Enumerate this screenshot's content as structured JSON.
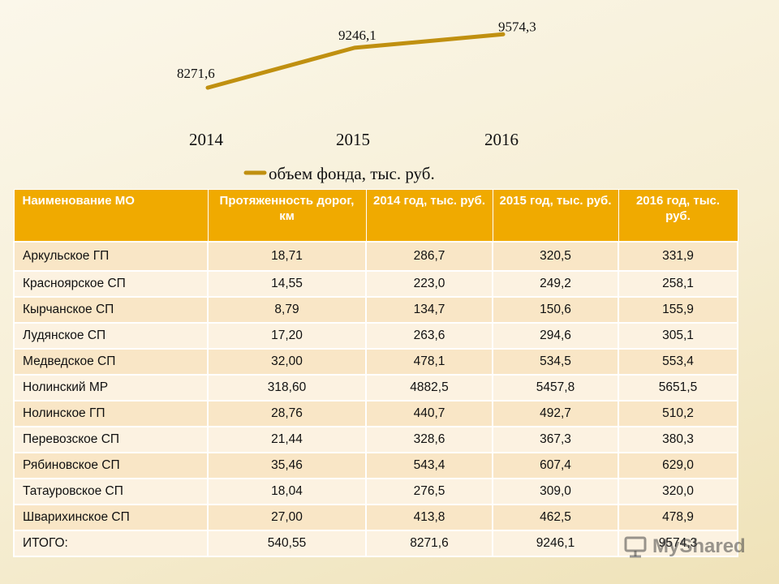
{
  "chart_data": {
    "type": "line",
    "categories": [
      "2014",
      "2015",
      "2016"
    ],
    "series": [
      {
        "name": "объем фонда, тыс. руб.",
        "values": [
          8271.6,
          9246.1,
          9574.3
        ],
        "labels": [
          "8271,6",
          "9246,1",
          "9574,3"
        ],
        "color": "#c09010"
      }
    ],
    "title": "",
    "xlabel": "",
    "ylabel": "",
    "ylim": [
      7700,
      9700
    ],
    "legend": "bottom-center",
    "grid": false
  },
  "table": {
    "headers": [
      "Наименование МО",
      "Протяженность дорог, км",
      "2014 год, тыс. руб.",
      "2015 год, тыс. руб.",
      "2016 год, тыс. руб."
    ],
    "rows": [
      [
        "Аркульское ГП",
        "18,71",
        "286,7",
        "320,5",
        "331,9"
      ],
      [
        "Красноярское СП",
        "14,55",
        "223,0",
        "249,2",
        "258,1"
      ],
      [
        "Кырчанское СП",
        "8,79",
        "134,7",
        "150,6",
        "155,9"
      ],
      [
        "Лудянское СП",
        "17,20",
        "263,6",
        "294,6",
        "305,1"
      ],
      [
        "Медведское СП",
        "32,00",
        "478,1",
        "534,5",
        "553,4"
      ],
      [
        "Нолинский МР",
        "318,60",
        "4882,5",
        "5457,8",
        "5651,5"
      ],
      [
        "Нолинское ГП",
        "28,76",
        "440,7",
        "492,7",
        "510,2"
      ],
      [
        "Перевозское СП",
        "21,44",
        "328,6",
        "367,3",
        "380,3"
      ],
      [
        "Рябиновское  СП",
        "35,46",
        "543,4",
        "607,4",
        "629,0"
      ],
      [
        "Татауровское СП",
        "18,04",
        "276,5",
        "309,0",
        "320,0"
      ],
      [
        "Шварихинское СП",
        "27,00",
        "413,8",
        "462,5",
        "478,9"
      ],
      [
        "ИТОГО:",
        "540,55",
        "8271,6",
        "9246,1",
        "9574,3"
      ]
    ]
  },
  "watermark": "MyShared",
  "colors": {
    "header": "#f0aa00",
    "row_odd": "#f9e6c6",
    "row_even": "#fcf2e1",
    "line": "#c09010"
  }
}
